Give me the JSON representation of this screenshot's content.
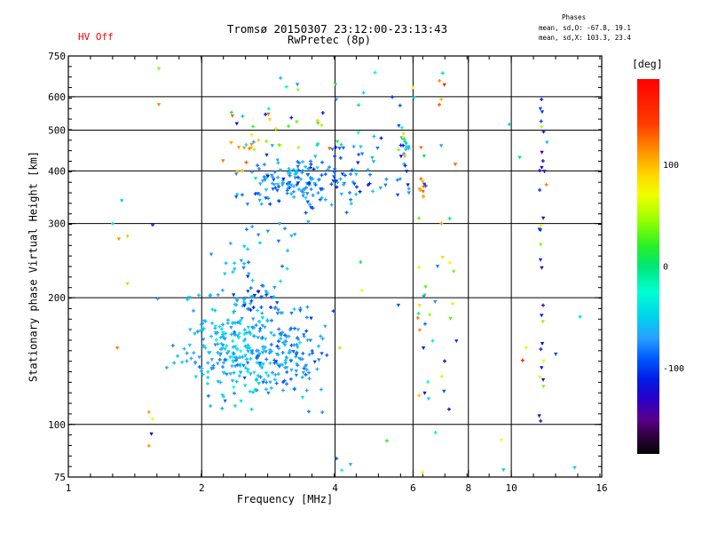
{
  "chart_data": {
    "type": "scatter",
    "title": "Tromsø 20150307 23:12:00-23:13:43",
    "subtitle": "RwPretec (8p)",
    "hv_label": "HV Off",
    "hv_color": "#ff0000",
    "stats": {
      "header": "Phases",
      "o_line": "mean, sd,O: -67.8, 19.1",
      "x_line": "mean, sd,X: 103.3, 23.4"
    },
    "xlabel": "Frequency [MHz]",
    "ylabel": "Stationary phase Virtual Height [km]",
    "x_axis": {
      "scale": "log",
      "min": 1,
      "max": 16,
      "ticks": [
        1,
        2,
        4,
        6,
        8,
        10,
        16
      ],
      "gridlines": [
        2,
        4,
        6,
        8,
        10
      ]
    },
    "y_axis": {
      "scale": "log",
      "min": 75,
      "max": 750,
      "ticks": [
        75,
        100,
        200,
        300,
        400,
        500,
        600,
        750
      ],
      "gridlines": [
        100,
        200,
        300,
        400,
        500,
        600
      ]
    },
    "colorbar": {
      "label": "[deg]",
      "min": -184,
      "max": 184,
      "ticks": [
        100,
        0,
        -100
      ],
      "stops": [
        [
          184,
          "#ff0000"
        ],
        [
          140,
          "#ff3c00"
        ],
        [
          115,
          "#ff8c00"
        ],
        [
          90,
          "#ffd700"
        ],
        [
          70,
          "#f0ff00"
        ],
        [
          45,
          "#96ff00"
        ],
        [
          20,
          "#28f028"
        ],
        [
          0,
          "#00e678"
        ],
        [
          -25,
          "#00ffd2"
        ],
        [
          -50,
          "#00d2eb"
        ],
        [
          -70,
          "#28a0ff"
        ],
        [
          -90,
          "#005aff"
        ],
        [
          -110,
          "#001ee6"
        ],
        [
          -130,
          "#2800c8"
        ],
        [
          -150,
          "#5a008c"
        ],
        [
          -165,
          "#320046"
        ],
        [
          -184,
          "#050505"
        ]
      ]
    },
    "markers": {
      "O": "plus",
      "X": "triangle"
    },
    "clusters": [
      {
        "name": "E-region-main-blob",
        "n": 300,
        "seed": 11,
        "dist": "gauss",
        "f_center": 2.42,
        "f_sigma": 0.062,
        "h_center": 152,
        "h_sigma": 0.055,
        "deg_mean": -58,
        "deg_sd": 16,
        "tri": 0.35
      },
      {
        "name": "E-region-right-lobe",
        "n": 90,
        "seed": 12,
        "dist": "gauss",
        "f_center": 3.32,
        "f_sigma": 0.033,
        "h_center": 148,
        "h_sigma": 0.05,
        "deg_mean": -76,
        "deg_sd": 11,
        "tri": 0.35
      },
      {
        "name": "E-region-top-knot",
        "n": 22,
        "seed": 13,
        "dist": "gauss",
        "f_center": 2.66,
        "f_sigma": 0.02,
        "h_center": 199,
        "h_sigma": 0.018,
        "deg_mean": -92,
        "deg_sd": 14,
        "tri": 0.3
      },
      {
        "name": "mid-sparse-200-300km",
        "n": 38,
        "seed": 14,
        "dist": "uniform",
        "f_min": 2.05,
        "f_max": 3.35,
        "h_min": 186,
        "h_max": 300,
        "deg_min": -85,
        "deg_max": -40,
        "tri": 0.4
      },
      {
        "name": "F-region-core",
        "n": 150,
        "seed": 15,
        "dist": "gauss",
        "f_center": 3.25,
        "f_sigma": 0.055,
        "h_center": 375,
        "h_sigma": 0.034,
        "deg_mean": -75,
        "deg_sd": 17,
        "tri": 0.35
      },
      {
        "name": "F-region-right-band",
        "n": 52,
        "seed": 16,
        "dist": "uniform",
        "f_min": 3.85,
        "f_max": 5.95,
        "h_min": 350,
        "h_max": 462,
        "deg_min": -122,
        "deg_max": -48,
        "tri": 0.4
      },
      {
        "name": "upper-mixed-band",
        "n": 34,
        "seed": 17,
        "dist": "uniform",
        "f_min": 2.3,
        "f_max": 5.3,
        "h_min": 448,
        "h_max": 572,
        "deg_min": -140,
        "deg_max": 148,
        "tri": 0.45
      },
      {
        "name": "topside-scatter",
        "n": 15,
        "seed": 18,
        "dist": "uniform",
        "f_min": 2.7,
        "f_max": 7.3,
        "h_min": 560,
        "h_max": 702,
        "deg_min": -130,
        "deg_max": 150,
        "tri": 0.4
      },
      {
        "name": "string-5p6MHz",
        "n": 14,
        "seed": 27,
        "dist": "uniform",
        "f_min": 5.5,
        "f_max": 5.85,
        "h_min": 430,
        "h_max": 590,
        "deg_min": -130,
        "deg_max": 140,
        "tri": 0.45
      },
      {
        "name": "string-6MHz",
        "n": 20,
        "seed": 19,
        "dist": "uniform",
        "f_min": 6.15,
        "f_max": 6.55,
        "h_min": 115,
        "h_max": 480,
        "deg_min": -130,
        "deg_max": 140,
        "tri": 0.5
      },
      {
        "name": "x-mode-knot-6MHz",
        "n": 8,
        "seed": 28,
        "dist": "uniform",
        "f_min": 6.18,
        "f_max": 6.35,
        "h_min": 345,
        "h_max": 400,
        "deg_min": 95,
        "deg_max": 135,
        "tri": 0.5
      },
      {
        "name": "string-7MHz",
        "n": 18,
        "seed": 20,
        "dist": "uniform",
        "f_min": 6.55,
        "f_max": 7.55,
        "h_min": 95,
        "h_max": 490,
        "deg_min": -140,
        "deg_max": 140,
        "tri": 0.45
      },
      {
        "name": "column-11p7MHz-dark",
        "n": 24,
        "seed": 21,
        "dist": "uniform",
        "f_min": 11.55,
        "f_max": 11.95,
        "h_min": 100,
        "h_max": 680,
        "deg_min": -150,
        "deg_max": -95,
        "tri": 0.7
      },
      {
        "name": "column-11p7MHz-warm",
        "n": 7,
        "seed": 22,
        "dist": "uniform",
        "f_min": 11.6,
        "f_max": 11.9,
        "h_min": 120,
        "h_max": 600,
        "deg_min": 35,
        "deg_max": 80,
        "tri": 0.7
      },
      {
        "name": "x-mode-left-of-F",
        "n": 9,
        "seed": 24,
        "dist": "uniform",
        "f_min": 2.2,
        "f_max": 2.62,
        "h_min": 390,
        "h_max": 470,
        "deg_min": 95,
        "deg_max": 135,
        "tri": 0.5
      },
      {
        "name": "bottom-sparse",
        "n": 3,
        "seed": 25,
        "dist": "uniform",
        "f_min": 3.4,
        "f_max": 7.0,
        "h_min": 76,
        "h_max": 95,
        "deg_min": -120,
        "deg_max": 120,
        "tri": 0.4
      },
      {
        "name": "right-sparse",
        "n": 3,
        "seed": 26,
        "dist": "uniform",
        "f_min": 8.3,
        "f_max": 13.0,
        "h_min": 250,
        "h_max": 520,
        "deg_min": -120,
        "deg_max": 120,
        "tri": 0.5
      }
    ],
    "points": [
      [
        1.6,
        700,
        40,
        "t"
      ],
      [
        1.6,
        575,
        115,
        "t"
      ],
      [
        1.32,
        340,
        -50,
        "t"
      ],
      [
        1.26,
        300,
        -48,
        "p"
      ],
      [
        1.55,
        298,
        -112,
        "p"
      ],
      [
        1.3,
        276,
        112,
        "t"
      ],
      [
        1.36,
        280,
        95,
        "t"
      ],
      [
        1.36,
        216,
        95,
        "t"
      ],
      [
        1.29,
        152,
        120,
        "t"
      ],
      [
        1.52,
        107,
        108,
        "p"
      ],
      [
        1.55,
        103,
        72,
        "p"
      ],
      [
        1.54,
        95,
        -128,
        "t"
      ],
      [
        1.52,
        89,
        112,
        "p"
      ],
      [
        9.9,
        516,
        -58,
        "p"
      ],
      [
        12.6,
        147,
        -95,
        "t"
      ],
      [
        9.5,
        92,
        70,
        "p"
      ],
      [
        13.9,
        79,
        -50,
        "t"
      ],
      [
        4.03,
        83,
        -95,
        "p"
      ],
      [
        4.57,
        243,
        8,
        "p"
      ],
      [
        4.6,
        208,
        72,
        "p"
      ],
      [
        5.56,
        192,
        -92,
        "t"
      ],
      [
        4.1,
        152,
        45,
        "p"
      ],
      [
        10.6,
        142,
        168,
        "p"
      ],
      [
        10.8,
        152,
        80,
        "t"
      ],
      [
        7.06,
        641,
        160,
        "t"
      ],
      [
        7.0,
        683,
        -45,
        "p"
      ],
      [
        6.3,
        77,
        75,
        "p"
      ],
      [
        9.6,
        78,
        -50,
        "t"
      ],
      [
        14.3,
        180,
        -45,
        "t"
      ]
    ]
  }
}
